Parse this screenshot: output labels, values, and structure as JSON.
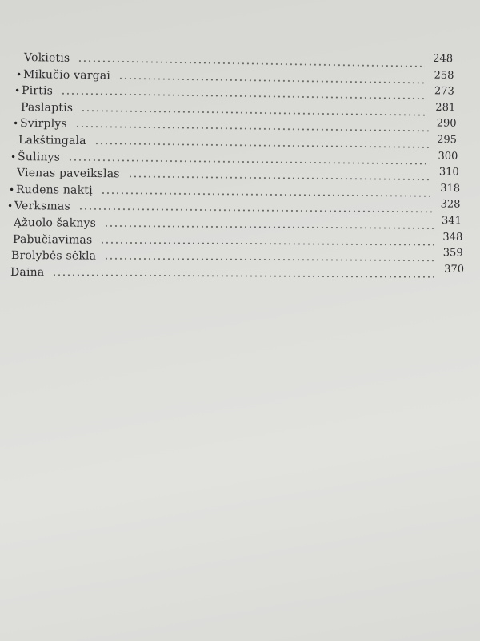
{
  "contents": [
    {
      "title": "Vokietis",
      "page": "248",
      "marked": false
    },
    {
      "title": "Mikučio vargai",
      "page": "258",
      "marked": true
    },
    {
      "title": "Pirtis",
      "page": "273",
      "marked": true
    },
    {
      "title": "Paslaptis",
      "page": "281",
      "marked": false
    },
    {
      "title": "Svirplys",
      "page": "290",
      "marked": true
    },
    {
      "title": "Lakštingala",
      "page": "295",
      "marked": false
    },
    {
      "title": "Šulinys",
      "page": "300",
      "marked": true
    },
    {
      "title": "Vienas paveikslas",
      "page": "310",
      "marked": false
    },
    {
      "title": "Rudens naktį",
      "page": "318",
      "marked": true
    },
    {
      "title": "Verksmas",
      "page": "328",
      "marked": true
    },
    {
      "title": "Ąžuolo šaknys",
      "page": "341",
      "marked": false
    },
    {
      "title": "Pabučiavimas",
      "page": "348",
      "marked": false
    },
    {
      "title": "Brolybės sėkla",
      "page": "359",
      "marked": false
    },
    {
      "title": "Daina",
      "page": "370",
      "marked": false
    }
  ]
}
